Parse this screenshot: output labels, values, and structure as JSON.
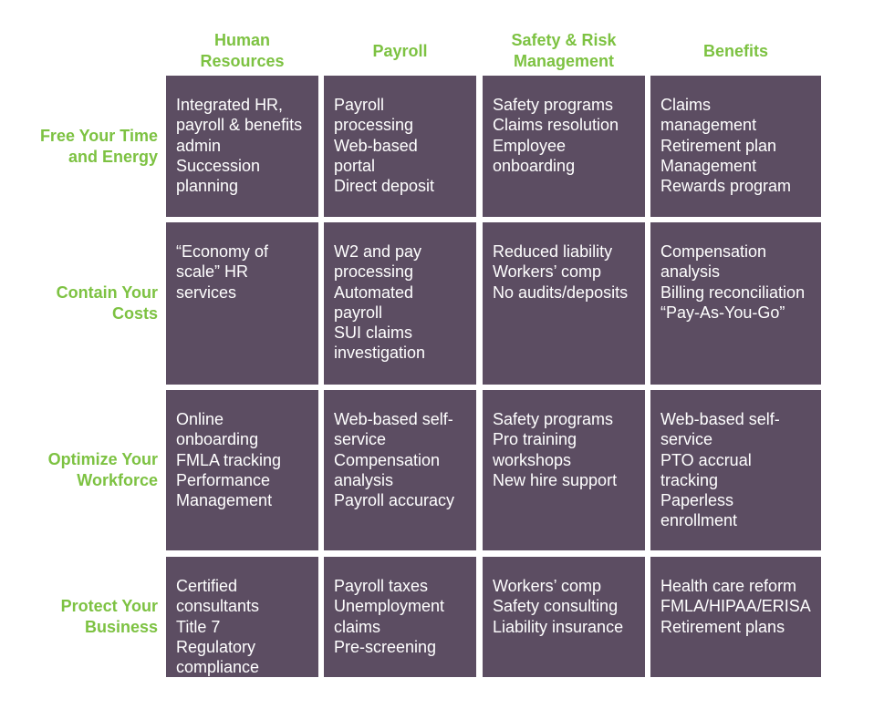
{
  "columns": [
    "Human\nResources",
    "Payroll",
    "Safety & Risk\nManagement",
    "Benefits"
  ],
  "rows": [
    {
      "label": "Free Your Time\nand Energy",
      "cells": [
        [
          "Integrated HR,",
          "payroll & benefits",
          "admin",
          "Succession",
          "planning"
        ],
        [
          "Payroll",
          "processing",
          "Web-based",
          "portal",
          "Direct deposit"
        ],
        [
          "Safety programs",
          "Claims resolution",
          "Employee",
          "onboarding"
        ],
        [
          "Claims",
          "management",
          "Retirement plan",
          "Management",
          "Rewards program"
        ]
      ]
    },
    {
      "label": "Contain Your\nCosts",
      "cells": [
        [
          "“Economy of",
          "scale” HR",
          "services"
        ],
        [
          "W2 and pay",
          "processing",
          "Automated",
          "payroll",
          "SUI claims",
          "investigation"
        ],
        [
          "Reduced liability",
          "Workers’ comp",
          "No audits/deposits"
        ],
        [
          "Compensation",
          "analysis",
          "Billing reconciliation",
          "“Pay-As-You-Go”"
        ]
      ]
    },
    {
      "label": "Optimize Your\nWorkforce",
      "cells": [
        [
          "Online",
          "onboarding",
          "FMLA tracking",
          "Performance",
          "Management"
        ],
        [
          "Web-based self-",
          "service",
          "Compensation",
          "analysis",
          "Payroll accuracy"
        ],
        [
          "Safety programs",
          "Pro training",
          "workshops",
          "New hire support"
        ],
        [
          "Web-based self-",
          "service",
          "PTO accrual",
          "tracking",
          "Paperless",
          "enrollment"
        ]
      ]
    },
    {
      "label": "Protect Your\nBusiness",
      "cells": [
        [
          "Certified",
          "consultants",
          "Title 7",
          "Regulatory",
          "compliance"
        ],
        [
          "Payroll taxes",
          "Unemployment",
          "claims",
          "Pre-screening"
        ],
        [
          "Workers’ comp",
          "Safety consulting",
          "Liability insurance"
        ],
        [
          "Health care reform",
          "FMLA/HIPAA/ERISA",
          "Retirement plans"
        ]
      ]
    }
  ]
}
